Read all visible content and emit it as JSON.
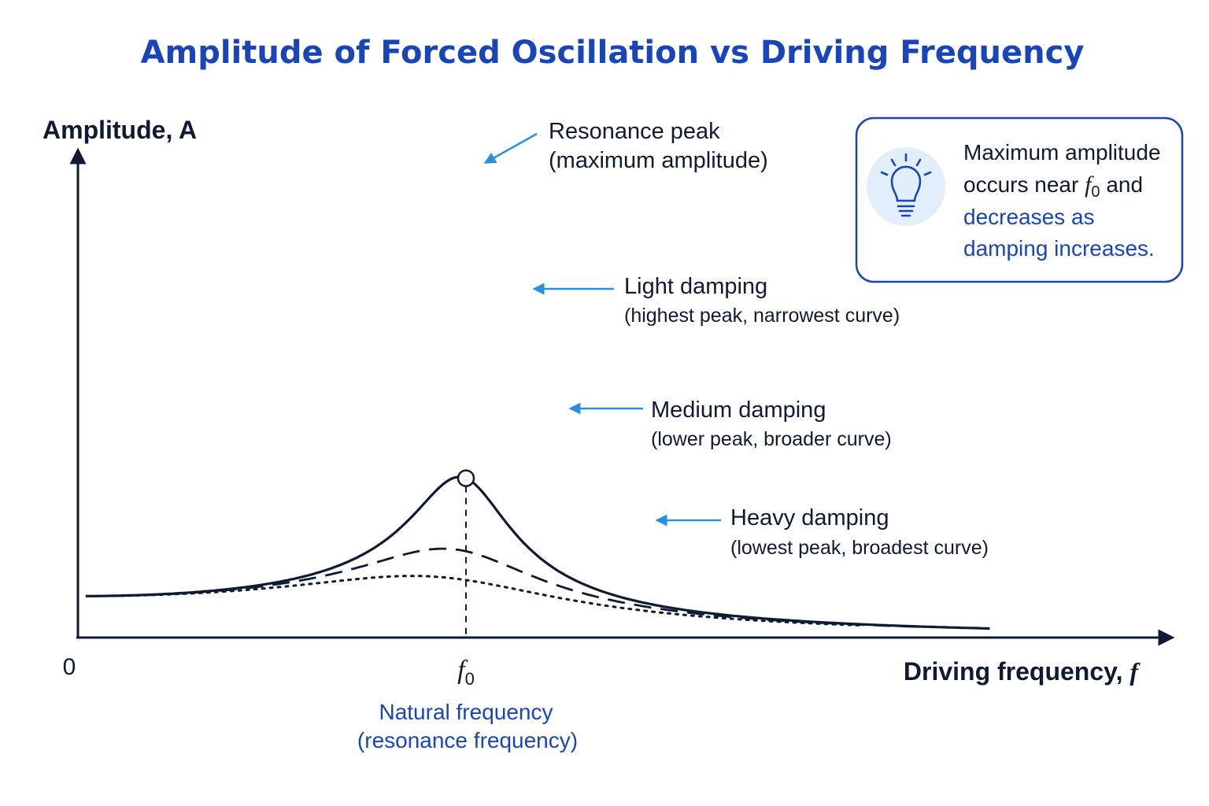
{
  "chart_data": {
    "type": "line",
    "title": "Amplitude of Forced Oscillation vs Driving Frequency",
    "ylabel": "Amplitude, A",
    "xlabel": "Driving frequency, ",
    "xlabel_var": "f",
    "x_origin_label": "0",
    "natural_frequency_symbol": "f",
    "natural_frequency_subscript": "0",
    "natural_frequency_label": [
      "Natural frequency",
      "(resonance frequency)"
    ],
    "xlim": [
      0,
      2.85
    ],
    "ylim": [
      0,
      1.1
    ],
    "f0": 1.0,
    "series": [
      {
        "key": "light",
        "style": "solid",
        "damping": 0.13,
        "x_range": [
          0.02,
          2.35
        ]
      },
      {
        "key": "medium",
        "style": "dashed",
        "damping": 0.24,
        "x_range": [
          0.02,
          2.18
        ]
      },
      {
        "key": "heavy",
        "style": "dotted",
        "damping": 0.36,
        "x_range": [
          0.09,
          2.02
        ]
      }
    ],
    "annotations": {
      "resonance_peak": [
        "Resonance peak",
        "(maximum amplitude)"
      ],
      "light": [
        "Light damping",
        "(highest peak, narrowest curve)"
      ],
      "medium": [
        "Medium damping",
        "(lower peak, broader curve)"
      ],
      "heavy": [
        "Heavy damping",
        "(lowest peak, broadest curve)"
      ]
    },
    "info_box": {
      "icon": "lightbulb-icon",
      "line1": "Maximum amplitude",
      "line2_prefix": "occurs near ",
      "line2_symbol": "f",
      "line2_subscript": "0",
      "line2_suffix": " and",
      "line3": "decreases as",
      "line4": "damping increases."
    },
    "colors": {
      "title": "#1a45b8",
      "curve": "#0f1a33",
      "arrow": "#2b8fe0",
      "info_border": "#1a45b8",
      "icon_bg": "#e3eefc"
    }
  }
}
